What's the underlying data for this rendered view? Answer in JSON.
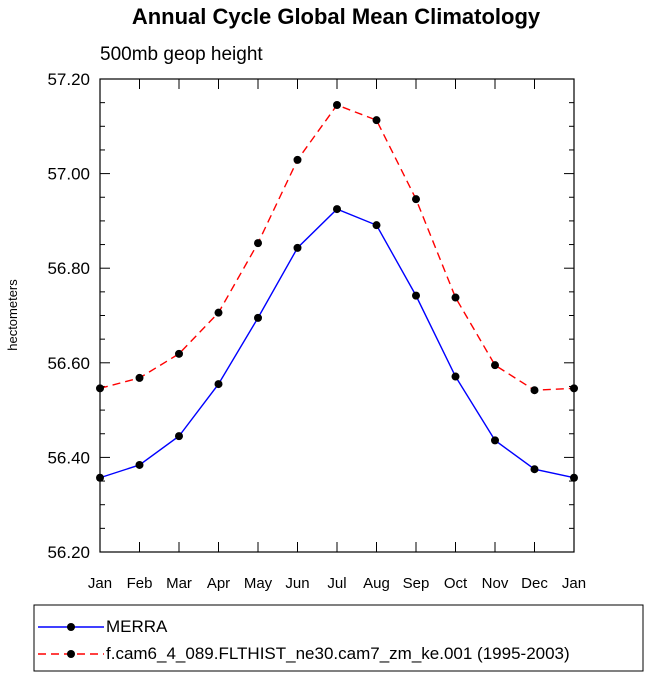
{
  "chart_data": {
    "type": "line",
    "title": "Annual Cycle Global Mean Climatology",
    "subtitle": "500mb geop height",
    "xlabel": "",
    "ylabel": "hectometers",
    "categories": [
      "Jan",
      "Feb",
      "Mar",
      "Apr",
      "May",
      "Jun",
      "Jul",
      "Aug",
      "Sep",
      "Oct",
      "Nov",
      "Dec",
      "Jan"
    ],
    "ylim": [
      56.2,
      57.2
    ],
    "yticks": [
      "56.20",
      "56.40",
      "56.60",
      "56.80",
      "57.00",
      "57.20"
    ],
    "grid": false,
    "legend_position": "bottom",
    "series": [
      {
        "name": "MERRA",
        "color": "#0000ff",
        "line_style": "solid",
        "marker": "filled-circle",
        "values": [
          56.357,
          56.384,
          56.445,
          56.555,
          56.695,
          56.843,
          56.925,
          56.891,
          56.742,
          56.571,
          56.436,
          56.375,
          56.357
        ]
      },
      {
        "name": "f.cam6_4_089.FLTHIST_ne30.cam7_zm_ke.001 (1995-2003)",
        "color": "#ff0000",
        "line_style": "dashed",
        "marker": "filled-circle",
        "values": [
          56.546,
          56.568,
          56.619,
          56.706,
          56.853,
          57.029,
          57.145,
          57.113,
          56.946,
          56.738,
          56.595,
          56.542,
          56.546
        ]
      }
    ]
  }
}
